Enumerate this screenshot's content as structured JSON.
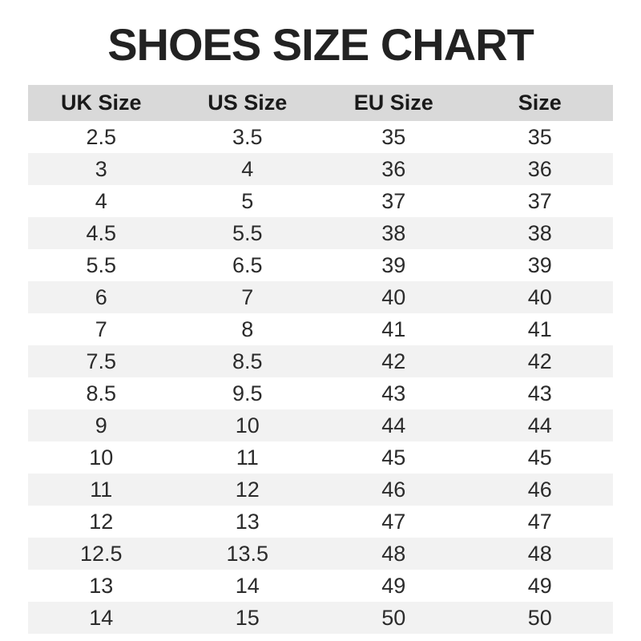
{
  "title": "SHOES SIZE CHART",
  "chart_data": {
    "type": "table",
    "title": "SHOES SIZE CHART",
    "columns": [
      "UK Size",
      "US Size",
      "EU Size",
      "Size"
    ],
    "rows": [
      [
        "2.5",
        "3.5",
        "35",
        "35"
      ],
      [
        "3",
        "4",
        "36",
        "36"
      ],
      [
        "4",
        "5",
        "37",
        "37"
      ],
      [
        "4.5",
        "5.5",
        "38",
        "38"
      ],
      [
        "5.5",
        "6.5",
        "39",
        "39"
      ],
      [
        "6",
        "7",
        "40",
        "40"
      ],
      [
        "7",
        "8",
        "41",
        "41"
      ],
      [
        "7.5",
        "8.5",
        "42",
        "42"
      ],
      [
        "8.5",
        "9.5",
        "43",
        "43"
      ],
      [
        "9",
        "10",
        "44",
        "44"
      ],
      [
        "10",
        "11",
        "45",
        "45"
      ],
      [
        "11",
        "12",
        "46",
        "46"
      ],
      [
        "12",
        "13",
        "47",
        "47"
      ],
      [
        "12.5",
        "13.5",
        "48",
        "48"
      ],
      [
        "13",
        "14",
        "49",
        "49"
      ],
      [
        "14",
        "15",
        "50",
        "50"
      ]
    ],
    "layout": {
      "legend": "none",
      "grid": "off",
      "row_striping": true
    }
  },
  "colors": {
    "header_bg": "#d9d9d9",
    "alt_row_bg": "#f2f2f2",
    "title_text": "#222222",
    "body_text": "#2b2b2b",
    "background": "#ffffff"
  }
}
